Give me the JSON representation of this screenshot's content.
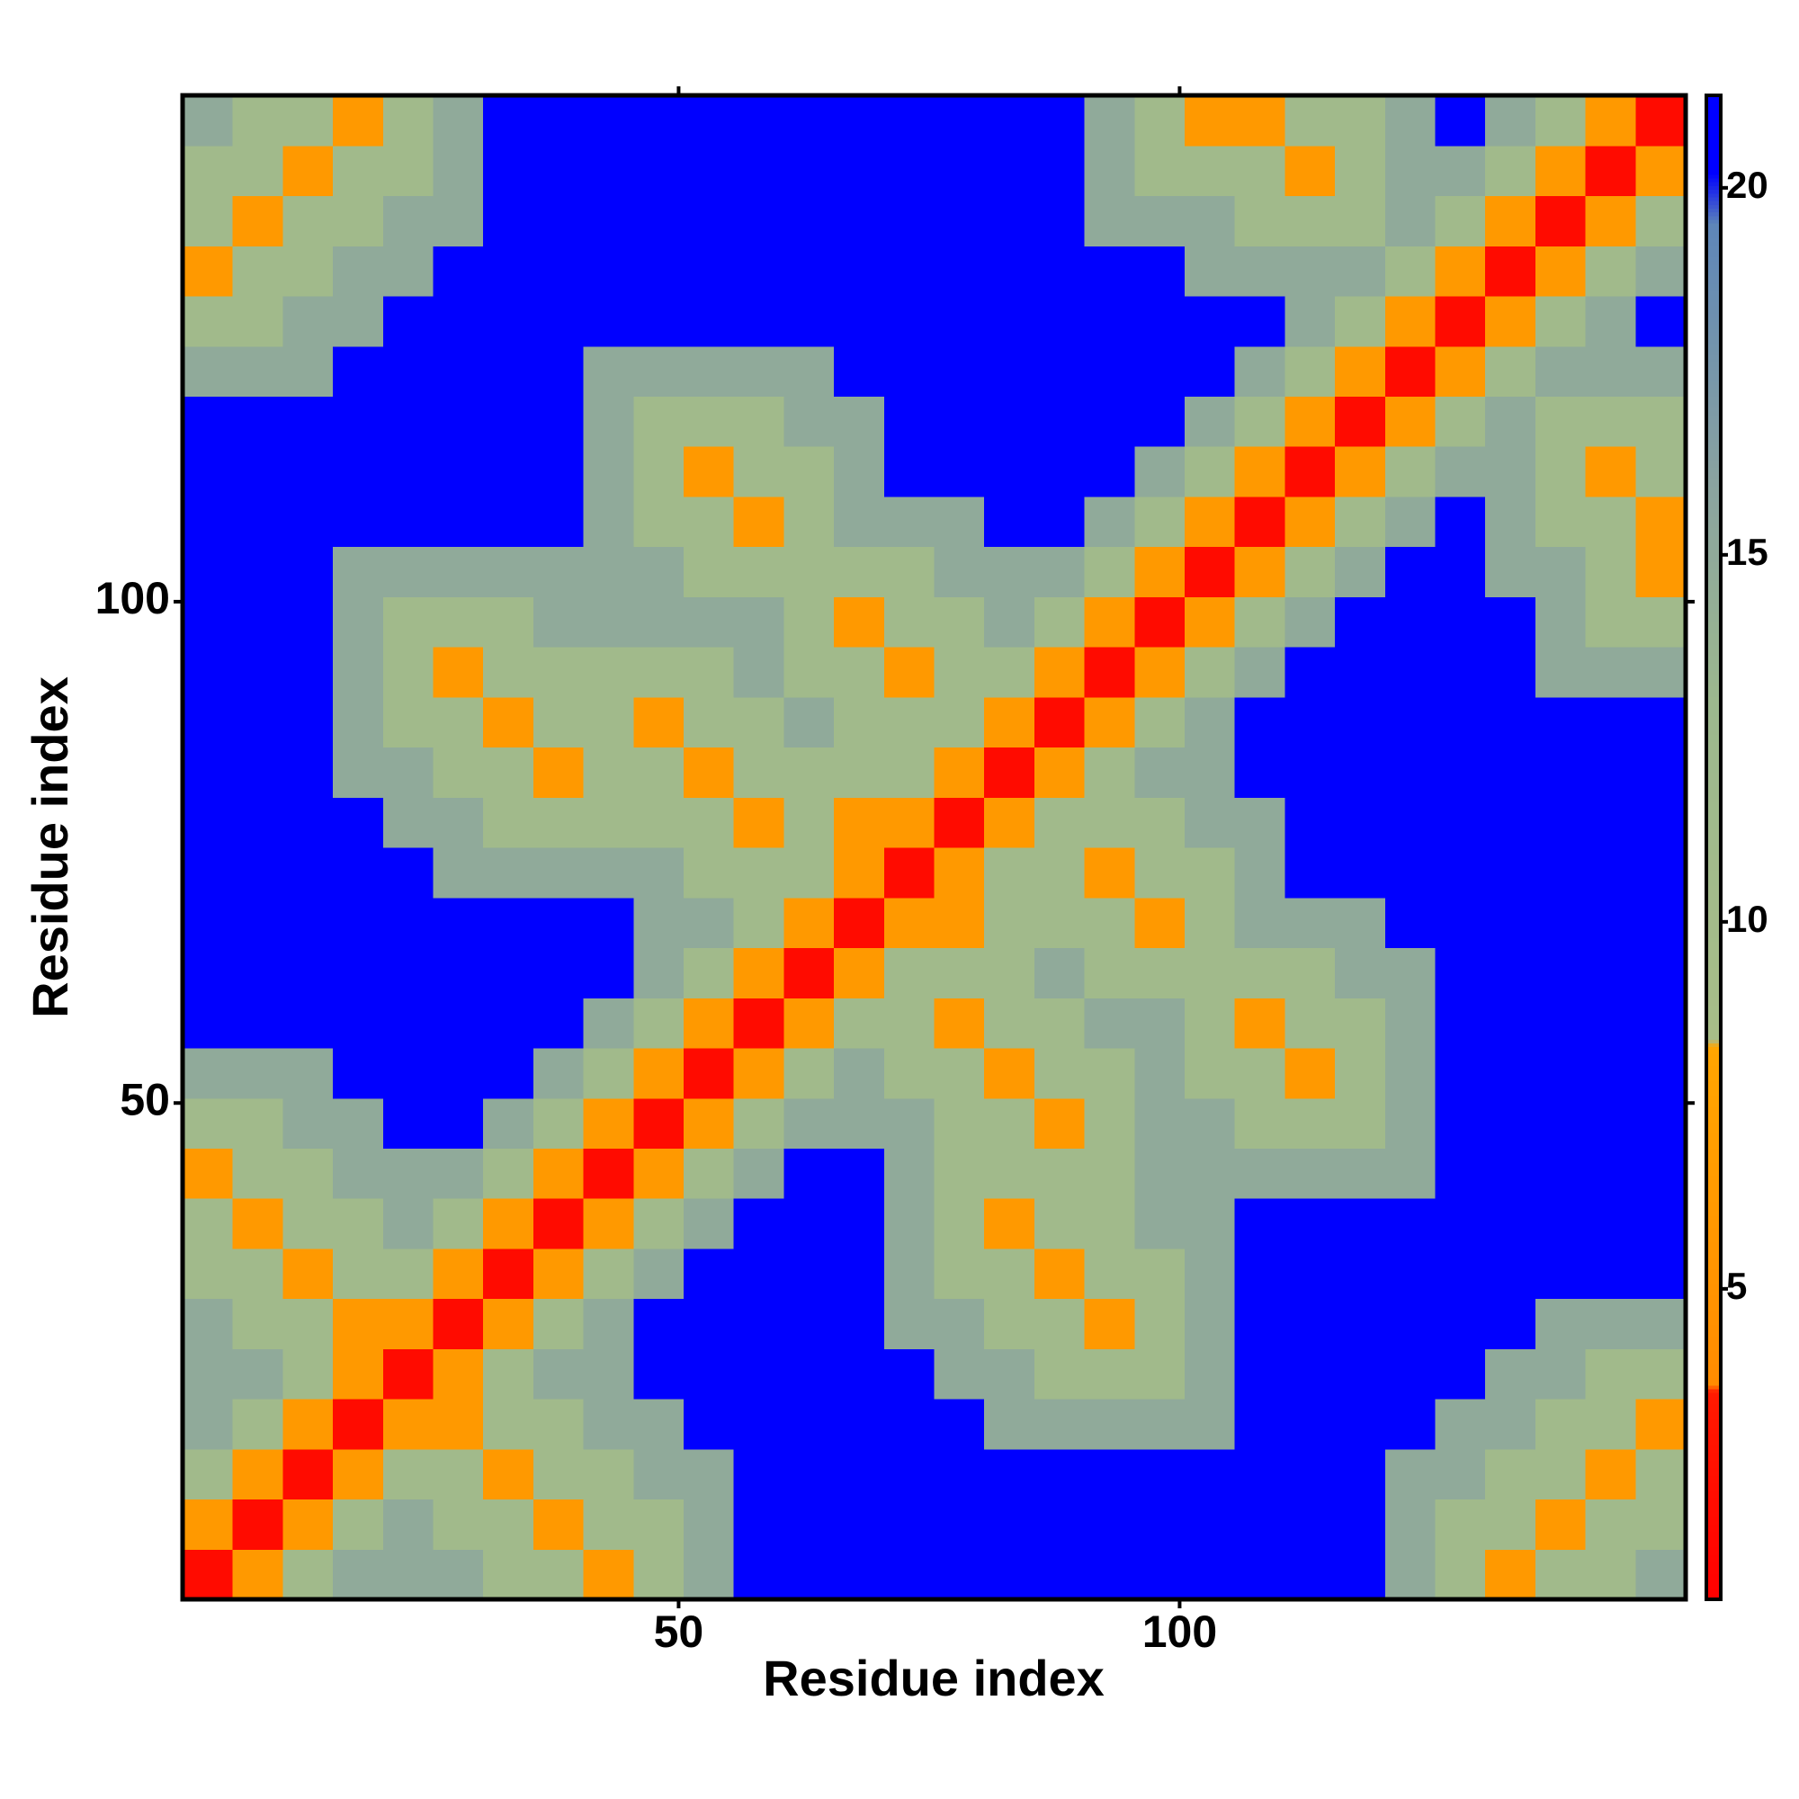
{
  "chart_data": {
    "type": "heatmap",
    "x_label": "Residue index",
    "y_label": "Residue index",
    "x": [
      3,
      8,
      13,
      18,
      23,
      28,
      33,
      38,
      43,
      48,
      53,
      58,
      63,
      68,
      73,
      78,
      83,
      88,
      93,
      98,
      103,
      108,
      113,
      118,
      123,
      128,
      133,
      138,
      143,
      148
    ],
    "y": [
      3,
      8,
      13,
      18,
      23,
      28,
      33,
      38,
      43,
      48,
      53,
      58,
      63,
      68,
      73,
      78,
      83,
      88,
      93,
      98,
      103,
      108,
      113,
      118,
      123,
      128,
      133,
      138,
      143,
      148
    ],
    "xlim": [
      0.5,
      150.5
    ],
    "ylim": [
      0.5,
      150.5
    ],
    "xticks": [
      50,
      100
    ],
    "yticks": [
      50,
      100
    ],
    "zlim": [
      0.77,
      21.26
    ],
    "zticks": [
      5,
      10,
      15,
      20
    ],
    "colorscale": [
      [
        0.77,
        "#ff0000"
      ],
      [
        3.6,
        "#ff1a00"
      ],
      [
        3.7,
        "#ff8c00"
      ],
      [
        8.3,
        "#ffa500"
      ],
      [
        8.4,
        "#a8bd88"
      ],
      [
        13,
        "#9cb88e"
      ],
      [
        16,
        "#8aa3a0"
      ],
      [
        19.5,
        "#5e86b8"
      ],
      [
        20.2,
        "#0000ff"
      ],
      [
        21.26,
        "#0000ff"
      ]
    ],
    "z": [
      [
        2,
        6,
        11,
        15,
        15,
        15,
        11,
        11,
        6,
        11,
        15,
        21,
        21,
        21,
        21,
        21,
        21,
        21,
        21,
        21,
        21,
        21,
        21,
        21,
        15,
        11,
        6,
        11,
        11,
        15
      ],
      [
        6,
        2,
        6,
        11,
        15,
        11,
        11,
        6,
        11,
        11,
        15,
        21,
        21,
        21,
        21,
        21,
        21,
        21,
        21,
        21,
        21,
        21,
        21,
        21,
        15,
        11,
        11,
        6,
        11,
        11
      ],
      [
        11,
        6,
        2,
        6,
        11,
        11,
        6,
        11,
        11,
        15,
        15,
        21,
        21,
        21,
        21,
        21,
        21,
        21,
        21,
        21,
        21,
        21,
        21,
        21,
        15,
        15,
        11,
        11,
        6,
        11
      ],
      [
        15,
        11,
        6,
        2,
        6,
        6,
        11,
        11,
        15,
        15,
        21,
        21,
        21,
        21,
        21,
        21,
        15,
        15,
        15,
        15,
        15,
        21,
        21,
        21,
        21,
        15,
        15,
        11,
        11,
        6
      ],
      [
        15,
        15,
        11,
        6,
        2,
        6,
        11,
        15,
        15,
        21,
        21,
        21,
        21,
        21,
        21,
        15,
        15,
        11,
        11,
        11,
        15,
        21,
        21,
        21,
        21,
        21,
        15,
        15,
        11,
        11
      ],
      [
        15,
        11,
        11,
        6,
        6,
        2,
        6,
        11,
        15,
        21,
        21,
        21,
        21,
        21,
        15,
        15,
        11,
        11,
        6,
        11,
        15,
        21,
        21,
        21,
        21,
        21,
        21,
        15,
        15,
        15
      ],
      [
        11,
        11,
        6,
        11,
        11,
        6,
        2,
        6,
        11,
        15,
        21,
        21,
        21,
        21,
        15,
        11,
        11,
        6,
        11,
        11,
        15,
        21,
        21,
        21,
        21,
        21,
        21,
        21,
        21,
        21
      ],
      [
        11,
        6,
        11,
        11,
        15,
        11,
        6,
        2,
        6,
        11,
        15,
        21,
        21,
        21,
        15,
        11,
        6,
        11,
        11,
        15,
        15,
        21,
        21,
        21,
        21,
        21,
        21,
        21,
        21,
        21
      ],
      [
        6,
        11,
        11,
        15,
        15,
        15,
        11,
        6,
        2,
        6,
        11,
        15,
        21,
        21,
        15,
        11,
        11,
        11,
        11,
        15,
        15,
        15,
        15,
        15,
        15,
        21,
        21,
        21,
        21,
        21
      ],
      [
        11,
        11,
        15,
        15,
        21,
        21,
        15,
        11,
        6,
        2,
        6,
        11,
        15,
        15,
        15,
        11,
        11,
        6,
        11,
        15,
        15,
        11,
        11,
        11,
        15,
        21,
        21,
        21,
        21,
        21
      ],
      [
        15,
        15,
        15,
        21,
        21,
        21,
        21,
        15,
        11,
        6,
        2,
        6,
        11,
        15,
        11,
        11,
        6,
        11,
        11,
        15,
        11,
        11,
        6,
        11,
        15,
        21,
        21,
        21,
        21,
        21
      ],
      [
        21,
        21,
        21,
        21,
        21,
        21,
        21,
        21,
        15,
        11,
        6,
        2,
        6,
        11,
        11,
        6,
        11,
        11,
        15,
        15,
        11,
        6,
        11,
        11,
        15,
        21,
        21,
        21,
        21,
        21
      ],
      [
        21,
        21,
        21,
        21,
        21,
        21,
        21,
        21,
        21,
        15,
        11,
        6,
        2,
        6,
        11,
        11,
        11,
        15,
        11,
        11,
        11,
        11,
        11,
        15,
        15,
        21,
        21,
        21,
        21,
        21
      ],
      [
        21,
        21,
        21,
        21,
        21,
        21,
        21,
        21,
        21,
        15,
        15,
        11,
        6,
        2,
        6,
        6,
        11,
        11,
        11,
        6,
        11,
        15,
        15,
        15,
        21,
        21,
        21,
        21,
        21,
        21
      ],
      [
        21,
        21,
        21,
        21,
        21,
        15,
        15,
        15,
        15,
        15,
        11,
        11,
        11,
        6,
        2,
        6,
        11,
        11,
        6,
        11,
        11,
        15,
        21,
        21,
        21,
        21,
        21,
        21,
        21,
        21
      ],
      [
        21,
        21,
        21,
        21,
        15,
        15,
        11,
        11,
        11,
        11,
        11,
        6,
        11,
        6,
        6,
        2,
        6,
        11,
        11,
        11,
        15,
        15,
        21,
        21,
        21,
        21,
        21,
        21,
        21,
        21
      ],
      [
        21,
        21,
        21,
        15,
        15,
        11,
        11,
        6,
        11,
        11,
        6,
        11,
        11,
        11,
        11,
        6,
        2,
        6,
        11,
        15,
        15,
        21,
        21,
        21,
        21,
        21,
        21,
        21,
        21,
        21
      ],
      [
        21,
        21,
        21,
        15,
        11,
        11,
        6,
        11,
        11,
        6,
        11,
        11,
        15,
        11,
        11,
        11,
        6,
        2,
        6,
        11,
        15,
        21,
        21,
        21,
        21,
        21,
        21,
        21,
        21,
        21
      ],
      [
        21,
        21,
        21,
        15,
        11,
        6,
        11,
        11,
        11,
        11,
        11,
        15,
        11,
        11,
        6,
        11,
        11,
        6,
        2,
        6,
        11,
        15,
        21,
        21,
        21,
        21,
        21,
        15,
        15,
        15
      ],
      [
        21,
        21,
        21,
        15,
        11,
        11,
        11,
        15,
        15,
        15,
        15,
        15,
        11,
        6,
        11,
        11,
        15,
        11,
        6,
        2,
        6,
        11,
        15,
        21,
        21,
        21,
        21,
        15,
        11,
        11
      ],
      [
        21,
        21,
        21,
        15,
        15,
        15,
        15,
        15,
        15,
        15,
        11,
        11,
        11,
        11,
        11,
        15,
        15,
        15,
        11,
        6,
        2,
        6,
        11,
        15,
        21,
        21,
        15,
        15,
        11,
        6
      ],
      [
        21,
        21,
        21,
        21,
        21,
        21,
        21,
        21,
        15,
        11,
        11,
        6,
        11,
        15,
        15,
        15,
        21,
        21,
        15,
        11,
        6,
        2,
        6,
        11,
        15,
        21,
        15,
        11,
        11,
        6
      ],
      [
        21,
        21,
        21,
        21,
        21,
        21,
        21,
        21,
        15,
        11,
        6,
        11,
        11,
        15,
        21,
        21,
        21,
        21,
        21,
        15,
        11,
        6,
        2,
        6,
        11,
        15,
        15,
        11,
        6,
        11
      ],
      [
        21,
        21,
        21,
        21,
        21,
        21,
        21,
        21,
        15,
        11,
        11,
        11,
        15,
        15,
        21,
        21,
        21,
        21,
        21,
        21,
        15,
        11,
        6,
        2,
        6,
        11,
        15,
        11,
        11,
        11
      ],
      [
        15,
        15,
        15,
        21,
        21,
        21,
        21,
        21,
        15,
        15,
        15,
        15,
        15,
        21,
        21,
        21,
        21,
        21,
        21,
        21,
        21,
        15,
        11,
        6,
        2,
        6,
        11,
        15,
        15,
        15
      ],
      [
        11,
        11,
        15,
        15,
        21,
        21,
        21,
        21,
        21,
        21,
        21,
        21,
        21,
        21,
        21,
        21,
        21,
        21,
        21,
        21,
        21,
        21,
        15,
        11,
        6,
        2,
        6,
        11,
        15,
        21
      ],
      [
        6,
        11,
        11,
        15,
        15,
        21,
        21,
        21,
        21,
        21,
        21,
        21,
        21,
        21,
        21,
        21,
        21,
        21,
        21,
        21,
        15,
        15,
        15,
        15,
        11,
        6,
        2,
        6,
        11,
        15
      ],
      [
        11,
        6,
        11,
        11,
        15,
        15,
        21,
        21,
        21,
        21,
        21,
        21,
        21,
        21,
        21,
        21,
        21,
        21,
        15,
        15,
        15,
        11,
        11,
        11,
        15,
        11,
        6,
        2,
        6,
        11
      ],
      [
        11,
        11,
        6,
        11,
        11,
        15,
        21,
        21,
        21,
        21,
        21,
        21,
        21,
        21,
        21,
        21,
        21,
        21,
        15,
        11,
        11,
        11,
        6,
        11,
        15,
        15,
        11,
        6,
        2,
        6
      ],
      [
        15,
        11,
        11,
        6,
        11,
        15,
        21,
        21,
        21,
        21,
        21,
        21,
        21,
        21,
        21,
        21,
        21,
        21,
        15,
        11,
        6,
        6,
        11,
        11,
        15,
        21,
        15,
        11,
        6,
        2
      ]
    ]
  }
}
